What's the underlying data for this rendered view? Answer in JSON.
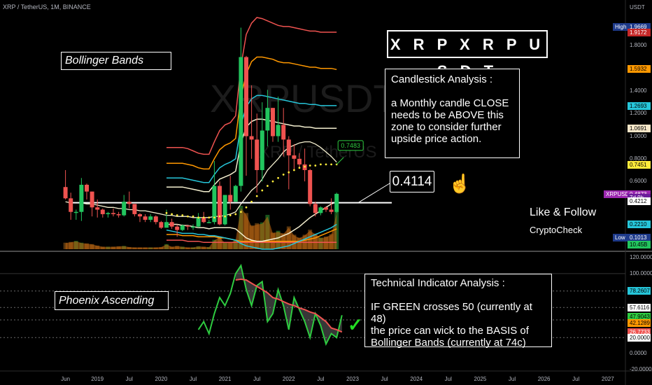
{
  "header": {
    "symbol": "XRP / TetherUS, 1M, BINANCE",
    "axis_unit": "USDT"
  },
  "watermark": {
    "line1": "XRPUSDT, 1",
    "line2": "XRP / TetherUS"
  },
  "annotations": {
    "title": "X R P  X R P U S D T",
    "bollinger_label": "Bollinger Bands",
    "candle_title": "Candlestick Analysis :",
    "candle_lines": [
      "a Monthly candle CLOSE",
      "needs to be ABOVE this",
      "zone to consider further",
      "upside price action."
    ],
    "price_level": "0.4114",
    "ma_callout": "0.7483",
    "follow": "Like & Follow",
    "brand": "CryptoCheck",
    "phoenix_label": "Phoenix Ascending",
    "tech_title": "Technical Indicator Analysis :",
    "tech_lines": [
      "IF GREEN crosses 50 (currently at 48)",
      "the price can wick to the BASIS of",
      "Bollinger Bands (currently at 74c)"
    ],
    "hand_icon": "pointing-hand-icon",
    "check_icon": "check-mark-icon"
  },
  "colors": {
    "up": "#26a69a",
    "up_bright": "#22c55e",
    "down": "#ef5350",
    "price_badge": "#9c27b0",
    "basis": "#f5f0d0",
    "lower_band": "#26c6da",
    "band_orange": "#ff9800",
    "band_red": "#ef5350",
    "osc_green": "#2ecc40",
    "osc_red": "#ef5350",
    "volume": "#c86a10"
  },
  "price_axis": {
    "ticks": [
      "1.8000",
      "1.4000",
      "1.2000",
      "1.0000",
      "0.8000",
      "0.6000",
      "0.2000"
    ],
    "badges": [
      {
        "label": "High",
        "value": "1.9669",
        "color": "#1e3a8a",
        "text": "#ffffff"
      },
      {
        "label": "",
        "value": "1.9172",
        "color": "#c62828",
        "text": "#ffffff"
      },
      {
        "label": "",
        "value": "1.5932",
        "color": "#ff9800",
        "text": "#000000"
      },
      {
        "label": "",
        "value": "1.2693",
        "color": "#26c6da",
        "text": "#000000"
      },
      {
        "label": "",
        "value": "1.0691",
        "color": "#f5e6c8",
        "text": "#000000"
      },
      {
        "label": "",
        "value": "0.7451",
        "color": "#ffeb3b",
        "text": "#000000"
      },
      {
        "label": "XRPUSDT",
        "value": "0.4873",
        "color": "#9c27b0",
        "text": "#ffffff"
      },
      {
        "label": "",
        "value": "7d 9h",
        "color": "#6a1b9a",
        "text": "#ffffff"
      },
      {
        "label": "",
        "value": "0.4212",
        "color": "#ffffff",
        "text": "#000000"
      },
      {
        "label": "",
        "value": "0.2210",
        "color": "#26c6da",
        "text": "#000000"
      },
      {
        "label": "Low",
        "value": "0.1013",
        "color": "#1e3a8a",
        "text": "#ffffff"
      },
      {
        "label": "",
        "value": "10.45B",
        "color": "#22c55e",
        "text": "#000000"
      }
    ]
  },
  "osc_axis": {
    "ticks": [
      "120.0000",
      "100.0000",
      "0.0000",
      "-20.0000"
    ],
    "badges": [
      {
        "value": "78.2607",
        "color": "#26c6da",
        "text": "#000000"
      },
      {
        "value": "57.6116",
        "color": "#ffffff",
        "text": "#000000"
      },
      {
        "value": "47.9043",
        "color": "#2ecc40",
        "text": "#000000"
      },
      {
        "value": "42.1289",
        "color": "#ff9800",
        "text": "#000000"
      },
      {
        "value": "26.7733",
        "color": "#ef5350",
        "text": "#ffffff"
      },
      {
        "value": "20.0000",
        "color": "#ffffff",
        "text": "#000000"
      }
    ]
  },
  "x_axis": [
    "Jun",
    "2019",
    "Jul",
    "2020",
    "Jul",
    "2021",
    "Jul",
    "2022",
    "Jul",
    "2023",
    "Jul",
    "2024",
    "Jul",
    "2025",
    "Jul",
    "2026",
    "Jul",
    "2027"
  ],
  "chart_data": [
    {
      "type": "candlestick",
      "title": "XRP / TetherUS, 1M, BINANCE",
      "ylabel": "USDT",
      "ylim": [
        0.0,
        2.05
      ],
      "x_range": [
        "2018-05",
        "2027-02"
      ],
      "start_month": "2018-06",
      "candles": [
        [
          0.55,
          0.7,
          0.44,
          0.45
        ],
        [
          0.45,
          0.5,
          0.26,
          0.33
        ],
        [
          0.33,
          0.35,
          0.26,
          0.33
        ],
        [
          0.33,
          0.63,
          0.25,
          0.57
        ],
        [
          0.57,
          0.58,
          0.44,
          0.51
        ],
        [
          0.51,
          0.51,
          0.29,
          0.37
        ],
        [
          0.37,
          0.44,
          0.28,
          0.35
        ],
        [
          0.35,
          0.36,
          0.28,
          0.31
        ],
        [
          0.31,
          0.33,
          0.28,
          0.32
        ],
        [
          0.32,
          0.36,
          0.29,
          0.31
        ],
        [
          0.31,
          0.33,
          0.28,
          0.3
        ],
        [
          0.3,
          0.48,
          0.29,
          0.42
        ],
        [
          0.42,
          0.51,
          0.36,
          0.4
        ],
        [
          0.4,
          0.4,
          0.29,
          0.31
        ],
        [
          0.31,
          0.32,
          0.24,
          0.29
        ],
        [
          0.29,
          0.31,
          0.24,
          0.26
        ],
        [
          0.26,
          0.31,
          0.24,
          0.29
        ],
        [
          0.29,
          0.3,
          0.22,
          0.24
        ],
        [
          0.24,
          0.25,
          0.18,
          0.19
        ],
        [
          0.19,
          0.35,
          0.19,
          0.24
        ],
        [
          0.24,
          0.27,
          0.18,
          0.2
        ],
        [
          0.2,
          0.22,
          0.11,
          0.17
        ],
        [
          0.17,
          0.22,
          0.16,
          0.21
        ],
        [
          0.21,
          0.21,
          0.17,
          0.2
        ],
        [
          0.2,
          0.22,
          0.17,
          0.2
        ],
        [
          0.2,
          0.32,
          0.19,
          0.28
        ],
        [
          0.28,
          0.33,
          0.23,
          0.24
        ],
        [
          0.24,
          0.26,
          0.23,
          0.24
        ],
        [
          0.24,
          0.78,
          0.22,
          0.56
        ],
        [
          0.56,
          0.6,
          0.21,
          0.22
        ],
        [
          0.22,
          0.48,
          0.21,
          0.48
        ],
        [
          0.48,
          0.65,
          0.35,
          0.42
        ],
        [
          0.42,
          0.57,
          0.42,
          0.56
        ],
        [
          0.56,
          1.96,
          0.51,
          1.7
        ],
        [
          1.7,
          1.71,
          0.65,
          1.0
        ],
        [
          1.0,
          1.45,
          0.8,
          0.97
        ],
        [
          0.97,
          1.2,
          0.5,
          0.7
        ],
        [
          0.7,
          1.3,
          0.6,
          1.05
        ],
        [
          1.05,
          1.41,
          0.91,
          1.25
        ],
        [
          1.25,
          1.25,
          0.95,
          1.0
        ],
        [
          1.0,
          1.35,
          0.95,
          1.1
        ],
        [
          1.1,
          1.25,
          0.82,
          0.97
        ],
        [
          0.97,
          1.0,
          0.53,
          0.83
        ],
        [
          0.83,
          0.93,
          0.7,
          0.8
        ],
        [
          0.8,
          0.85,
          0.72,
          0.75
        ],
        [
          0.75,
          0.89,
          0.6,
          0.7
        ],
        [
          0.7,
          0.71,
          0.38,
          0.4
        ],
        [
          0.4,
          0.42,
          0.29,
          0.32
        ],
        [
          0.32,
          0.38,
          0.3,
          0.37
        ],
        [
          0.37,
          0.38,
          0.33,
          0.35
        ],
        [
          0.35,
          0.45,
          0.31,
          0.33
        ],
        [
          0.33,
          0.5,
          0.32,
          0.49
        ]
      ],
      "volume_billions": [
        1.8,
        2.0,
        2.3,
        1.8,
        1.6,
        1.4,
        1.0,
        0.7,
        0.7,
        0.7,
        0.8,
        0.9,
        0.6,
        0.5,
        0.5,
        0.5,
        0.5,
        0.5,
        0.6,
        1.4,
        0.7,
        0.9,
        0.7,
        0.5,
        0.5,
        0.8,
        0.7,
        0.6,
        2.6,
        3.5,
        1.8,
        1.9,
        2.6,
        12.0,
        10.0,
        6.6,
        7.2,
        7.4,
        9.5,
        4.6,
        5.1,
        4.4,
        6.3,
        4.0,
        3.2,
        4.0,
        5.4,
        4.3,
        3.2,
        3.5,
        4.2,
        10.45
      ],
      "basis": [
        0.42,
        0.41,
        0.41,
        0.41,
        0.4,
        0.4,
        0.39,
        0.38,
        0.37,
        0.37,
        0.36,
        0.36,
        0.35,
        0.35,
        0.34,
        0.34,
        0.33,
        0.32,
        0.31,
        0.3,
        0.3,
        0.29,
        0.29,
        0.29,
        0.28,
        0.28,
        0.28,
        0.28,
        0.29,
        0.29,
        0.3,
        0.31,
        0.33,
        0.4,
        0.46,
        0.52,
        0.56,
        0.62,
        0.7,
        0.75,
        0.8,
        0.86,
        0.9,
        0.92,
        0.94,
        0.95,
        0.95,
        0.93,
        0.9,
        0.86,
        0.82,
        0.77
      ],
      "lower_band": [
        null,
        null,
        null,
        null,
        null,
        null,
        null,
        null,
        null,
        null,
        null,
        null,
        null,
        null,
        null,
        null,
        null,
        null,
        null,
        0.17,
        0.16,
        0.15,
        0.14,
        0.14,
        0.14,
        0.13,
        0.13,
        0.12,
        0.12,
        0.11,
        0.1,
        0.09,
        0.08,
        0.05,
        0.03,
        0.02,
        0.01,
        0.0,
        0.0,
        0.0,
        0.01,
        0.02,
        0.03,
        0.05,
        0.07,
        0.09,
        0.11,
        0.13,
        0.15,
        0.17,
        0.19,
        0.22
      ],
      "upper_bands": [
        {
          "color": "#ef5350",
          "values": [
            null,
            null,
            null,
            null,
            null,
            null,
            null,
            null,
            null,
            null,
            null,
            null,
            null,
            null,
            null,
            null,
            null,
            null,
            null,
            0.9,
            0.9,
            0.9,
            0.9,
            0.89,
            0.87,
            0.85,
            0.84,
            0.84,
            0.95,
            1.05,
            1.1,
            1.12,
            1.18,
            1.62,
            1.9,
            2.0,
            2.05,
            2.04,
            2.02,
            2.0,
            1.98,
            1.97,
            1.97,
            1.96,
            1.95,
            1.94,
            1.93,
            1.93,
            1.92,
            1.92,
            1.92,
            1.92
          ]
        },
        {
          "color": "#ff9800",
          "values": [
            null,
            null,
            null,
            null,
            null,
            null,
            null,
            null,
            null,
            null,
            null,
            null,
            null,
            null,
            null,
            null,
            null,
            null,
            null,
            0.76,
            0.76,
            0.76,
            0.76,
            0.75,
            0.74,
            0.72,
            0.71,
            0.71,
            0.8,
            0.88,
            0.92,
            0.94,
            0.98,
            1.35,
            1.55,
            1.66,
            1.7,
            1.7,
            1.69,
            1.68,
            1.66,
            1.65,
            1.65,
            1.64,
            1.63,
            1.62,
            1.61,
            1.61,
            1.6,
            1.6,
            1.6,
            1.59
          ]
        },
        {
          "color": "#26c6da",
          "values": [
            null,
            null,
            null,
            null,
            null,
            null,
            null,
            null,
            null,
            null,
            null,
            null,
            null,
            null,
            null,
            null,
            null,
            null,
            null,
            0.63,
            0.63,
            0.63,
            0.63,
            0.62,
            0.61,
            0.6,
            0.59,
            0.59,
            0.66,
            0.72,
            0.75,
            0.77,
            0.8,
            1.1,
            1.26,
            1.33,
            1.36,
            1.36,
            1.35,
            1.34,
            1.33,
            1.32,
            1.31,
            1.3,
            1.29,
            1.29,
            1.28,
            1.28,
            1.27,
            1.27,
            1.27,
            1.27
          ]
        },
        {
          "color": "#f5f0d0",
          "values": [
            null,
            null,
            null,
            null,
            null,
            null,
            null,
            null,
            null,
            null,
            null,
            null,
            null,
            null,
            null,
            null,
            null,
            null,
            null,
            0.55,
            0.55,
            0.55,
            0.55,
            0.54,
            0.53,
            0.52,
            0.51,
            0.51,
            0.57,
            0.62,
            0.64,
            0.66,
            0.69,
            0.94,
            1.08,
            1.13,
            1.15,
            1.15,
            1.14,
            1.13,
            1.12,
            1.11,
            1.1,
            1.09,
            1.09,
            1.08,
            1.08,
            1.07,
            1.07,
            1.07,
            1.07,
            1.07
          ]
        }
      ],
      "lower_bands": [
        {
          "color": "#ef5350",
          "values": [
            null,
            null,
            null,
            null,
            null,
            null,
            null,
            null,
            null,
            null,
            null,
            null,
            null,
            null,
            null,
            null,
            null,
            null,
            null,
            0.08,
            0.08,
            0.08,
            0.08,
            0.07,
            0.07,
            0.07,
            0.06,
            0.06,
            0.06,
            0.06,
            0.06,
            0.06,
            0.06,
            0.06,
            0.06,
            0.06,
            0.06,
            0.06,
            0.06,
            0.06,
            0.06,
            0.06,
            0.06,
            0.06,
            0.06,
            0.06,
            0.06,
            0.06,
            0.06,
            0.06,
            0.06,
            0.06
          ]
        },
        {
          "color": "#ff9800",
          "values": [
            null,
            null,
            null,
            null,
            null,
            null,
            null,
            null,
            null,
            null,
            null,
            null,
            null,
            null,
            null,
            null,
            null,
            null,
            null,
            0.13,
            0.13,
            0.13,
            0.12,
            0.12,
            0.12,
            0.11,
            0.11,
            0.11,
            0.11,
            0.1,
            0.1,
            0.09,
            0.08,
            0.07,
            0.07,
            0.07,
            0.07,
            0.07,
            0.07,
            0.07,
            0.07,
            0.07,
            0.07,
            0.07,
            0.07,
            0.08,
            0.09,
            0.1,
            0.12,
            0.14,
            0.16,
            0.18
          ]
        },
        {
          "color": "#f5f0d0",
          "values": [
            null,
            null,
            null,
            null,
            null,
            null,
            null,
            null,
            null,
            null,
            null,
            null,
            null,
            null,
            null,
            null,
            null,
            null,
            null,
            0.22,
            0.22,
            0.22,
            0.21,
            0.21,
            0.2,
            0.19,
            0.19,
            0.18,
            0.19,
            0.19,
            0.19,
            0.19,
            0.18,
            0.14,
            0.1,
            0.08,
            0.07,
            0.07,
            0.08,
            0.09,
            0.1,
            0.12,
            0.14,
            0.17,
            0.2,
            0.24,
            0.28,
            0.31,
            0.34,
            0.37,
            0.4,
            0.42
          ]
        }
      ],
      "ma_dots_start_index": 19,
      "ma_dots": [
        0.32,
        0.31,
        0.3,
        0.3,
        0.29,
        0.29,
        0.28,
        0.28,
        0.28,
        0.28,
        0.29,
        0.29,
        0.3,
        0.31,
        0.33,
        0.37,
        0.42,
        0.47,
        0.52,
        0.56,
        0.6,
        0.63,
        0.66,
        0.68,
        0.7,
        0.72,
        0.73,
        0.74,
        0.74,
        0.75,
        0.75,
        0.75,
        0.75
      ],
      "horizontal_level": 0.4114
    },
    {
      "type": "line",
      "title": "Phoenix Ascending",
      "ylim": [
        -20,
        120
      ],
      "x_start_index": 25,
      "series": [
        {
          "values": [
            30,
            40,
            25,
            50,
            70,
            60,
            75,
            100,
            110,
            80,
            60,
            85,
            90,
            40,
            50,
            80,
            60,
            30,
            70,
            55,
            40,
            20,
            50,
            35,
            12,
            25,
            20,
            48
          ]
        },
        {
          "values": [
            null,
            null,
            null,
            null,
            null,
            null,
            null,
            92,
            93,
            92,
            88,
            84,
            80,
            76,
            70,
            68,
            65,
            62,
            60,
            57,
            55,
            52,
            50,
            45,
            40,
            32,
            30,
            27
          ]
        }
      ],
      "levels": [
        78.2607,
        57.6116,
        42.1289,
        20.0
      ]
    }
  ]
}
